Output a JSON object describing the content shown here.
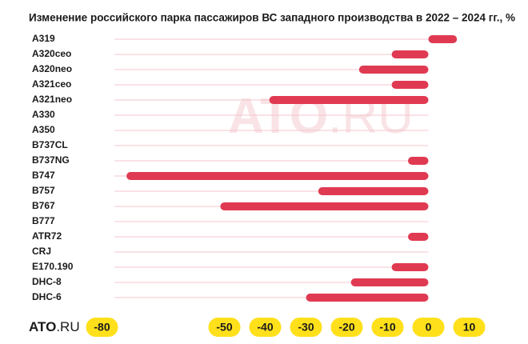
{
  "chart_data": {
    "type": "bar",
    "orientation": "horizontal",
    "title": "Изменение российского парка пассажиров ВС западного производства в 2022 – 2024 гг., %",
    "categories": [
      "A319",
      "A320ceo",
      "A320neo",
      "A321ceo",
      "A321neo",
      "A330",
      "A350",
      "B737CL",
      "B737NG",
      "B747",
      "B757",
      "B767",
      "B777",
      "ATR72",
      "CRJ",
      "E170.190",
      "DHC-8",
      "DHC-6"
    ],
    "values": [
      7,
      -9,
      -17,
      -9,
      -39,
      0,
      0,
      0,
      -5,
      -74,
      -27,
      -51,
      0,
      -5,
      0,
      -9,
      -19,
      -30
    ],
    "color": "#e03a52",
    "xlim": [
      -85,
      15
    ],
    "xticks": [
      -80,
      -50,
      -40,
      -30,
      -20,
      -10,
      0,
      10
    ],
    "watermark": {
      "main": "ATO",
      "suffix": ".RU"
    },
    "logo": {
      "main": "ATO",
      "suffix": ".RU"
    }
  }
}
